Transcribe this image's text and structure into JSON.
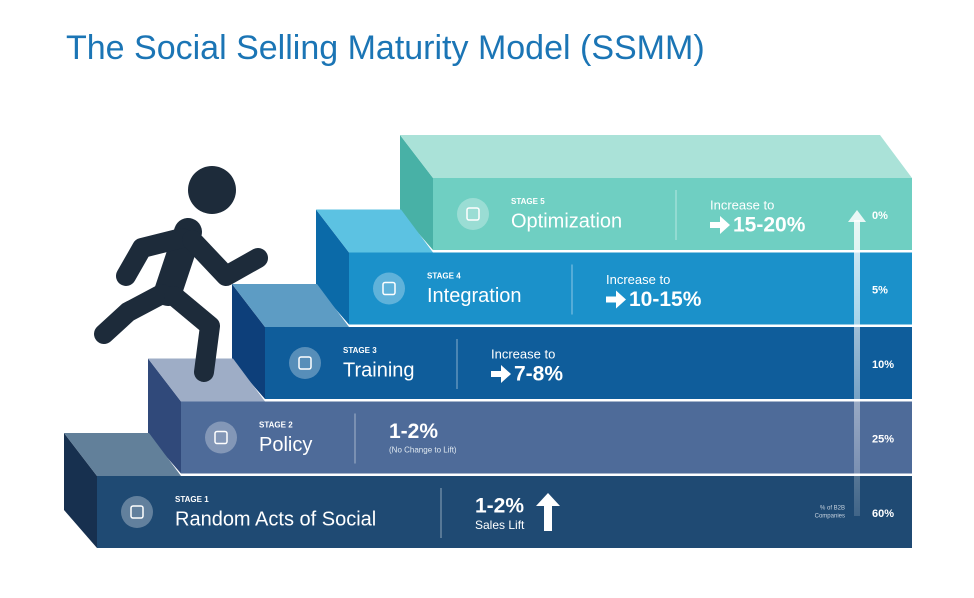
{
  "title": "The Social Selling Maturity Model (SSMM)",
  "stages": [
    {
      "stage": "STAGE 1",
      "name": "Random Acts of Social",
      "result": "1-2%",
      "result_note": "Sales Lift",
      "share": "60%"
    },
    {
      "stage": "STAGE 2",
      "name": "Policy",
      "result": "1-2%",
      "result_note": "(No Change to Lift)",
      "share": "25%"
    },
    {
      "stage": "STAGE 3",
      "name": "Training",
      "result_prefix": "Increase to",
      "result": "7-8%",
      "share": "10%"
    },
    {
      "stage": "STAGE 4",
      "name": "Integration",
      "result_prefix": "Increase to",
      "result": "10-15%",
      "share": "5%"
    },
    {
      "stage": "STAGE 5",
      "name": "Optimization",
      "result_prefix": "Increase to",
      "result": "15-20%",
      "share": "0%"
    }
  ],
  "share_label": [
    "% of B2B",
    "Companies"
  ]
}
